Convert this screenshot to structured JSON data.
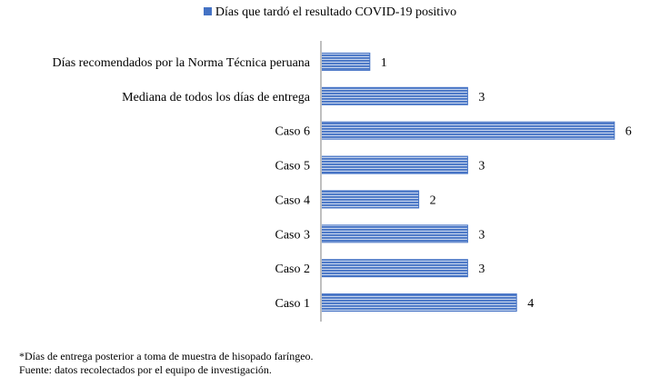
{
  "chart_data": {
    "type": "bar",
    "orientation": "horizontal",
    "categories": [
      "Días recomendados por la Norma Técnica peruana",
      "Mediana de todos los días de entrega",
      "Caso 6",
      "Caso 5",
      "Caso 4",
      "Caso 3",
      "Caso 2",
      "Caso 1"
    ],
    "series": [
      {
        "name": "Días que tardó el resultado COVID-19 positivo",
        "values": [
          1,
          3,
          6,
          3,
          2,
          3,
          3,
          4
        ]
      }
    ],
    "xlim": [
      0,
      6
    ],
    "grid": false,
    "legend_position": "top-center",
    "data_labels": true,
    "colors": {
      "bar_fill": "#4472C4",
      "bar_stripe": "#ffffff",
      "axis": "#bfbfbf"
    }
  },
  "notes": [
    "*Días de entrega posterior a toma de muestra de hisopado faríngeo.",
    "Fuente: datos recolectados por el equipo de investigación."
  ]
}
